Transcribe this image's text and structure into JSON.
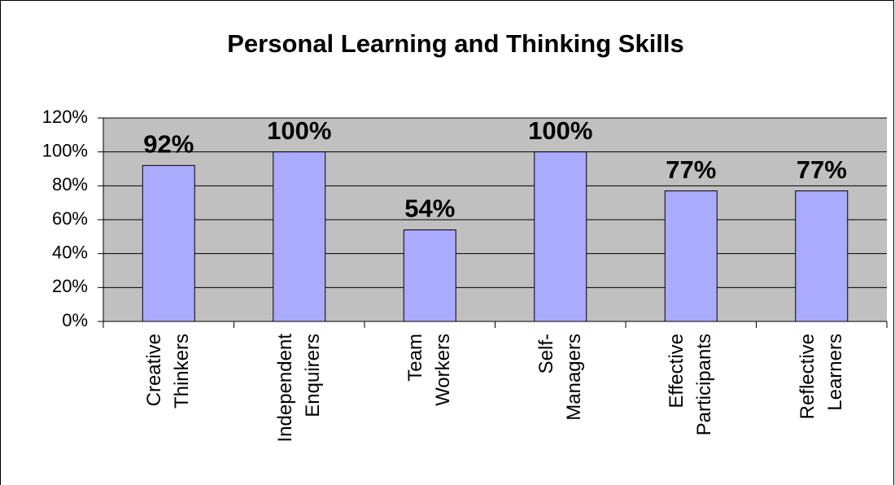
{
  "chart_data": {
    "type": "bar",
    "title": "Personal Learning and Thinking Skills",
    "categories": [
      "Creative Thinkers",
      "Independent Enquirers",
      "Team Workers",
      "Self-Managers",
      "Effective Participants",
      "Reflective Learners"
    ],
    "values": [
      92,
      100,
      54,
      100,
      77,
      77
    ],
    "value_labels": [
      "92%",
      "100%",
      "54%",
      "100%",
      "77%",
      "77%"
    ],
    "color": "#aaaaff",
    "ylim": [
      0,
      120
    ],
    "yticks": [
      {
        "value": 0,
        "label": "0%"
      },
      {
        "value": 20,
        "label": "20%"
      },
      {
        "value": 40,
        "label": "40%"
      },
      {
        "value": 60,
        "label": "60%"
      },
      {
        "value": 80,
        "label": "80%"
      },
      {
        "value": 100,
        "label": "100%"
      },
      {
        "value": 120,
        "label": "120%"
      }
    ],
    "grid": true
  }
}
